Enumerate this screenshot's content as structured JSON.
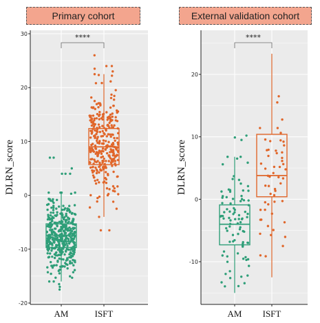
{
  "colors": {
    "am": "#2e9e78",
    "isft": "#e0662a",
    "panel_bg": "#ebebeb",
    "grid": "#ffffff",
    "title_bg": "#f3a58e"
  },
  "chart_data": [
    {
      "type": "box",
      "title": "Primary cohort",
      "ylabel": "DLRN_score",
      "ylim": [
        -20,
        30
      ],
      "yticks": [
        -20,
        -10,
        0,
        10,
        20,
        30
      ],
      "significance": "****",
      "categories": [
        "AM",
        "ISFT"
      ],
      "boxes": [
        {
          "name": "AM",
          "min": -16,
          "q1": -9.7,
          "median": -7.4,
          "q3": -5.3,
          "max": 0.5,
          "outliers": [
            7,
            7,
            5,
            4,
            4,
            4,
            -16.5,
            -17,
            -17.5
          ],
          "n_points": 420,
          "range": [
            -17.5,
            7
          ]
        },
        {
          "name": "ISFT",
          "min": -4,
          "q1": 5.7,
          "median": 9,
          "q3": 12.4,
          "max": 22.5,
          "outliers": [
            26,
            24,
            24,
            23.5,
            23,
            -6.5,
            -6.5
          ],
          "n_points": 300,
          "range": [
            -6.5,
            26
          ]
        }
      ]
    },
    {
      "type": "box",
      "title": "External validation cohort",
      "ylabel": "DLRN_score",
      "ylim": [
        -17,
        26
      ],
      "yticks": [
        -10,
        0,
        10,
        20
      ],
      "significance": "****",
      "categories": [
        "AM",
        "ISFT"
      ],
      "boxes": [
        {
          "name": "AM",
          "min": -15,
          "q1": -7.3,
          "median": -4,
          "q3": -0.9,
          "max": 6.8,
          "outliers": [
            10.2,
            9.9,
            9.5
          ],
          "n_points": 90,
          "range": [
            -15,
            10.2
          ]
        },
        {
          "name": "ISFT",
          "min": -12.5,
          "q1": 0.4,
          "median": 3.8,
          "q3": 10.4,
          "max": 23.3,
          "outliers": [],
          "n_points": 55,
          "range": [
            -12.5,
            23.3
          ]
        }
      ]
    }
  ]
}
